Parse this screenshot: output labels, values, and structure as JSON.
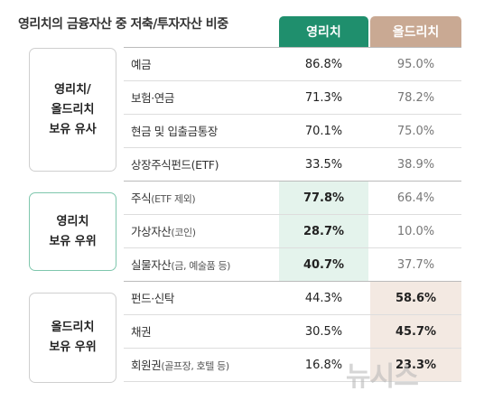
{
  "title": "영리치의 금융자산 중 저축/투자자산 비중",
  "columns": [
    "영리치",
    "올드리치"
  ],
  "groups": [
    {
      "label": "영리치/\n올드리치\n보유 유사"
    },
    {
      "label": "영리치\n보유 우위"
    },
    {
      "label": "올드리치\n보유 우위"
    }
  ],
  "rows": [
    {
      "main": "예금",
      "sub": "",
      "a": "86.8%",
      "b": "95.0%"
    },
    {
      "main": "보험·연금",
      "sub": "",
      "a": "71.3%",
      "b": "78.2%"
    },
    {
      "main": "현금 및 입출금통장",
      "sub": "",
      "a": "70.1%",
      "b": "75.0%"
    },
    {
      "main": "상장주식펀드(ETF)",
      "sub": "",
      "a": "33.5%",
      "b": "38.9%"
    },
    {
      "main": "주식",
      "sub": "(ETF 제외)",
      "a": "77.8%",
      "b": "66.4%"
    },
    {
      "main": "가상자산",
      "sub": "(코인)",
      "a": "28.7%",
      "b": "10.0%"
    },
    {
      "main": "실물자산",
      "sub": "(금, 예술품 등)",
      "a": "40.7%",
      "b": "37.7%"
    },
    {
      "main": "펀드·신탁",
      "sub": "",
      "a": "44.3%",
      "b": "58.6%"
    },
    {
      "main": "채권",
      "sub": "",
      "a": "30.5%",
      "b": "45.7%"
    },
    {
      "main": "회원권",
      "sub": "(골프장, 호텔 등)",
      "a": "16.8%",
      "b": "23.3%"
    }
  ],
  "watermark": "뉴시스",
  "chart_data": {
    "type": "table",
    "title": "영리치의 금융자산 중 저축/투자자산 비중",
    "columns": [
      "영리치",
      "올드리치"
    ],
    "categories": [
      "예금",
      "보험·연금",
      "현금 및 입출금통장",
      "상장주식펀드(ETF)",
      "주식(ETF 제외)",
      "가상자산(코인)",
      "실물자산(금, 예술품 등)",
      "펀드·신탁",
      "채권",
      "회원권(골프장, 호텔 등)"
    ],
    "series": [
      {
        "name": "영리치",
        "values": [
          86.8,
          71.3,
          70.1,
          33.5,
          77.8,
          28.7,
          40.7,
          44.3,
          30.5,
          16.8
        ]
      },
      {
        "name": "올드리치",
        "values": [
          95.0,
          78.2,
          75.0,
          38.9,
          66.4,
          10.0,
          37.7,
          58.6,
          45.7,
          23.3
        ]
      }
    ],
    "groups": [
      "영리치/올드리치 보유 유사",
      "영리치 보유 우위",
      "올드리치 보유 우위"
    ],
    "highlight_colors": {
      "영리치": "#1f8f6d",
      "올드리치": "#c9a993"
    }
  }
}
